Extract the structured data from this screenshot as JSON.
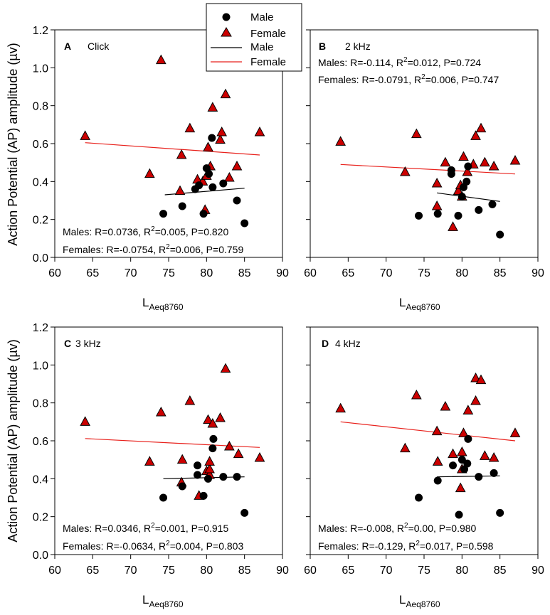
{
  "y_axis_label": "Action Potential (AP) amplitude (µv)",
  "x_axis_label_main": "L",
  "x_axis_label_sub": "Aeq8760",
  "legend": {
    "entries": [
      {
        "label": "Male",
        "kind": "marker",
        "marker": "circle",
        "color": "#000000"
      },
      {
        "label": "Female",
        "kind": "marker",
        "marker": "triangle",
        "color": "#cc0000"
      },
      {
        "label": "Male",
        "kind": "line",
        "color": "#000000"
      },
      {
        "label": "Female",
        "kind": "line",
        "color": "#e8211c"
      }
    ]
  },
  "colors": {
    "male": "#000000",
    "female_marker": "#cc0000",
    "female_line": "#e8211c"
  },
  "chart_data": [
    {
      "type": "scatter",
      "panel_letter": "A",
      "title": "Click",
      "stats": {
        "males_prefix": "Males: R=0.0736, R",
        "males_suffix": "=0.005, P=0.820",
        "females_prefix": "Females: R=-0.0754, R",
        "females_suffix": "=0.006, P=0.759"
      },
      "xlim": [
        60,
        90
      ],
      "ylim": [
        0,
        1.2
      ],
      "x_ticks": [
        60,
        65,
        70,
        75,
        80,
        85,
        90
      ],
      "y_ticks": [
        "0.0",
        "0.2",
        "0.4",
        "0.6",
        "0.8",
        "1.0",
        "1.2"
      ],
      "male": [
        [
          74.3,
          0.23
        ],
        [
          76.8,
          0.27
        ],
        [
          78.5,
          0.36
        ],
        [
          79.0,
          0.38
        ],
        [
          79.6,
          0.23
        ],
        [
          80.0,
          0.47
        ],
        [
          80.3,
          0.44
        ],
        [
          80.8,
          0.37
        ],
        [
          80.7,
          0.63
        ],
        [
          82.2,
          0.39
        ],
        [
          84.0,
          0.3
        ],
        [
          85.0,
          0.18
        ]
      ],
      "female": [
        [
          64.0,
          0.64
        ],
        [
          72.5,
          0.44
        ],
        [
          74.0,
          1.04
        ],
        [
          76.5,
          0.35
        ],
        [
          76.7,
          0.54
        ],
        [
          77.8,
          0.68
        ],
        [
          78.8,
          0.41
        ],
        [
          79.5,
          0.4
        ],
        [
          79.8,
          0.25
        ],
        [
          80.0,
          0.43
        ],
        [
          80.2,
          0.58
        ],
        [
          80.5,
          0.48
        ],
        [
          80.8,
          0.79
        ],
        [
          81.8,
          0.62
        ],
        [
          82.0,
          0.66
        ],
        [
          82.5,
          0.86
        ],
        [
          83.0,
          0.42
        ],
        [
          84.0,
          0.48
        ],
        [
          87.0,
          0.66
        ]
      ],
      "male_fit": [
        [
          74.5,
          0.33
        ],
        [
          85.0,
          0.365
        ]
      ],
      "female_fit": [
        [
          64.0,
          0.605
        ],
        [
          87.0,
          0.54
        ]
      ]
    },
    {
      "type": "scatter",
      "panel_letter": "B",
      "title": "2 kHz",
      "stats": {
        "males_prefix": "Males: R=-0.114, R",
        "males_suffix": "=0.012, P=0.724",
        "females_prefix": "Females: R=-0.0791, R",
        "females_suffix": "=0.006, P=0.747"
      },
      "xlim": [
        60,
        90
      ],
      "ylim": [
        0,
        1.2
      ],
      "x_ticks": [
        60,
        65,
        70,
        75,
        80,
        85,
        90
      ],
      "y_ticks": [
        "0.0",
        "0.2",
        "0.4",
        "0.6",
        "0.8",
        "1.0",
        "1.2"
      ],
      "male": [
        [
          74.3,
          0.22
        ],
        [
          76.8,
          0.23
        ],
        [
          78.6,
          0.44
        ],
        [
          78.6,
          0.46
        ],
        [
          79.5,
          0.22
        ],
        [
          80.0,
          0.32
        ],
        [
          80.2,
          0.37
        ],
        [
          80.6,
          0.4
        ],
        [
          80.8,
          0.48
        ],
        [
          82.2,
          0.25
        ],
        [
          84.0,
          0.28
        ],
        [
          85.0,
          0.12
        ]
      ],
      "female": [
        [
          64.0,
          0.61
        ],
        [
          72.5,
          0.45
        ],
        [
          74.0,
          0.65
        ],
        [
          76.7,
          0.39
        ],
        [
          76.7,
          0.27
        ],
        [
          77.8,
          0.5
        ],
        [
          78.8,
          0.16
        ],
        [
          79.5,
          0.35
        ],
        [
          79.8,
          0.38
        ],
        [
          80.0,
          0.32
        ],
        [
          80.2,
          0.53
        ],
        [
          80.7,
          0.45
        ],
        [
          81.5,
          0.49
        ],
        [
          81.8,
          0.64
        ],
        [
          82.5,
          0.68
        ],
        [
          83.0,
          0.5
        ],
        [
          84.2,
          0.48
        ],
        [
          87.0,
          0.51
        ]
      ],
      "male_fit": [
        [
          76.7,
          0.34
        ],
        [
          85.0,
          0.295
        ]
      ],
      "female_fit": [
        [
          64.0,
          0.49
        ],
        [
          87.0,
          0.44
        ]
      ]
    },
    {
      "type": "scatter",
      "panel_letter": "C",
      "title": "3 kHz",
      "stats": {
        "males_prefix": "Males: R=0.0346, R",
        "males_suffix": "=0.001, P=0.915",
        "females_prefix": "Females: R=-0.0634, R",
        "females_suffix": "=0.004, P=0.803"
      },
      "xlim": [
        60,
        90
      ],
      "ylim": [
        0,
        1.2
      ],
      "x_ticks": [
        60,
        65,
        70,
        75,
        80,
        85,
        90
      ],
      "y_ticks": [
        "0.0",
        "0.2",
        "0.4",
        "0.6",
        "0.8",
        "1.0",
        "1.2"
      ],
      "male": [
        [
          74.3,
          0.3
        ],
        [
          76.8,
          0.36
        ],
        [
          78.8,
          0.47
        ],
        [
          78.8,
          0.42
        ],
        [
          79.6,
          0.31
        ],
        [
          80.2,
          0.4
        ],
        [
          80.8,
          0.56
        ],
        [
          80.9,
          0.61
        ],
        [
          82.2,
          0.41
        ],
        [
          84.0,
          0.41
        ],
        [
          85.0,
          0.22
        ]
      ],
      "female": [
        [
          64.0,
          0.7
        ],
        [
          72.5,
          0.49
        ],
        [
          74.0,
          0.75
        ],
        [
          76.7,
          0.38
        ],
        [
          76.8,
          0.5
        ],
        [
          77.8,
          0.81
        ],
        [
          79.0,
          0.31
        ],
        [
          80.0,
          0.44
        ],
        [
          80.2,
          0.71
        ],
        [
          80.4,
          0.42
        ],
        [
          80.4,
          0.45
        ],
        [
          80.4,
          0.49
        ],
        [
          80.8,
          0.69
        ],
        [
          81.8,
          0.72
        ],
        [
          82.5,
          0.98
        ],
        [
          83.0,
          0.57
        ],
        [
          84.2,
          0.53
        ],
        [
          87.0,
          0.51
        ]
      ],
      "male_fit": [
        [
          74.3,
          0.4
        ],
        [
          85.0,
          0.41
        ]
      ],
      "female_fit": [
        [
          64.0,
          0.612
        ],
        [
          87.0,
          0.565
        ]
      ]
    },
    {
      "type": "scatter",
      "panel_letter": "D",
      "title": "4 kHz",
      "stats": {
        "males_prefix": "Males: R=-0.008, R",
        "males_suffix": "=0.00, P=0.980",
        "females_prefix": "Females: R=-0.129, R",
        "females_suffix": "=0.017, P=0.598"
      },
      "xlim": [
        60,
        90
      ],
      "ylim": [
        0,
        1.2
      ],
      "x_ticks": [
        60,
        65,
        70,
        75,
        80,
        85,
        90
      ],
      "y_ticks": [
        "0.0",
        "0.2",
        "0.4",
        "0.6",
        "0.8",
        "1.0",
        "1.2"
      ],
      "male": [
        [
          74.3,
          0.3
        ],
        [
          76.8,
          0.39
        ],
        [
          78.8,
          0.47
        ],
        [
          79.6,
          0.21
        ],
        [
          80.0,
          0.5
        ],
        [
          80.3,
          0.45
        ],
        [
          80.7,
          0.48
        ],
        [
          80.8,
          0.61
        ],
        [
          82.2,
          0.41
        ],
        [
          84.2,
          0.43
        ],
        [
          85.0,
          0.22
        ]
      ],
      "female": [
        [
          64.0,
          0.77
        ],
        [
          72.5,
          0.56
        ],
        [
          74.0,
          0.84
        ],
        [
          76.7,
          0.65
        ],
        [
          76.8,
          0.49
        ],
        [
          77.8,
          0.78
        ],
        [
          78.8,
          0.53
        ],
        [
          79.8,
          0.35
        ],
        [
          80.0,
          0.45
        ],
        [
          80.0,
          0.54
        ],
        [
          80.2,
          0.64
        ],
        [
          80.8,
          0.76
        ],
        [
          81.8,
          0.93
        ],
        [
          81.8,
          0.81
        ],
        [
          82.5,
          0.92
        ],
        [
          83.0,
          0.52
        ],
        [
          84.2,
          0.51
        ],
        [
          87.0,
          0.64
        ]
      ],
      "male_fit": [
        [
          76.7,
          0.41
        ],
        [
          85.0,
          0.415
        ]
      ],
      "female_fit": [
        [
          64.0,
          0.7
        ],
        [
          87.0,
          0.6
        ]
      ]
    }
  ]
}
